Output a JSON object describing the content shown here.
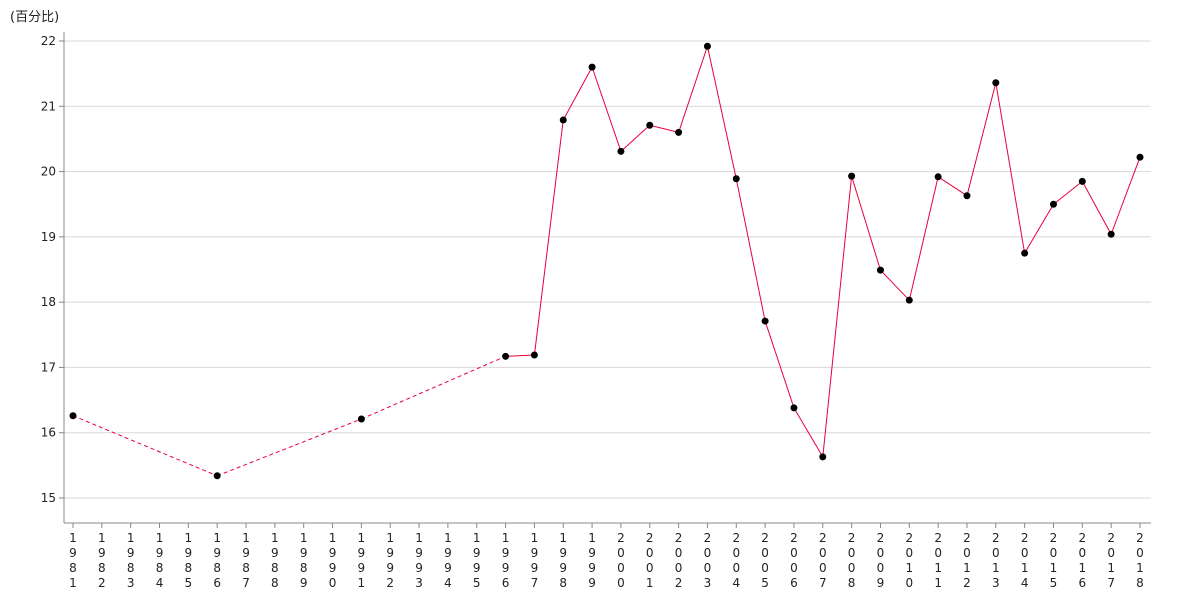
{
  "chart_data": {
    "type": "line",
    "ylabel": "(百分比)",
    "ylim": [
      14.8,
      22.15
    ],
    "yticks": [
      15,
      16,
      17,
      18,
      19,
      20,
      21,
      22
    ],
    "grid": "horizontal",
    "x": [
      "1981",
      "1982",
      "1983",
      "1984",
      "1985",
      "1986",
      "1987",
      "1988",
      "1989",
      "1990",
      "1991",
      "1992",
      "1993",
      "1994",
      "1995",
      "1996",
      "1997",
      "1998",
      "1999",
      "2000",
      "2001",
      "2002",
      "2003",
      "2004",
      "2005",
      "2006",
      "2007",
      "2008",
      "2009",
      "2010",
      "2011",
      "2012",
      "2013",
      "2014",
      "2015",
      "2016",
      "2017",
      "2018"
    ],
    "series": [
      {
        "color": "#e8003d",
        "marker_color": "#000000",
        "points": [
          [
            "1981",
            16.26
          ],
          [
            "1986",
            15.34
          ],
          [
            "1991",
            16.21
          ],
          [
            "1996",
            17.17
          ],
          [
            "1997",
            17.19
          ],
          [
            "1998",
            20.79
          ],
          [
            "1999",
            21.6
          ],
          [
            "2000",
            20.31
          ],
          [
            "2001",
            20.71
          ],
          [
            "2002",
            20.6
          ],
          [
            "2003",
            21.92
          ],
          [
            "2004",
            19.89
          ],
          [
            "2005",
            17.71
          ],
          [
            "2006",
            16.38
          ],
          [
            "2007",
            15.63
          ],
          [
            "2008",
            19.93
          ],
          [
            "2009",
            18.49
          ],
          [
            "2010",
            18.03
          ],
          [
            "2011",
            19.92
          ],
          [
            "2012",
            19.63
          ],
          [
            "2013",
            21.36
          ],
          [
            "2014",
            18.75
          ],
          [
            "2015",
            19.5
          ],
          [
            "2016",
            19.85
          ],
          [
            "2017",
            19.04
          ],
          [
            "2018",
            20.22
          ]
        ],
        "dashed_until": "1996"
      }
    ]
  }
}
